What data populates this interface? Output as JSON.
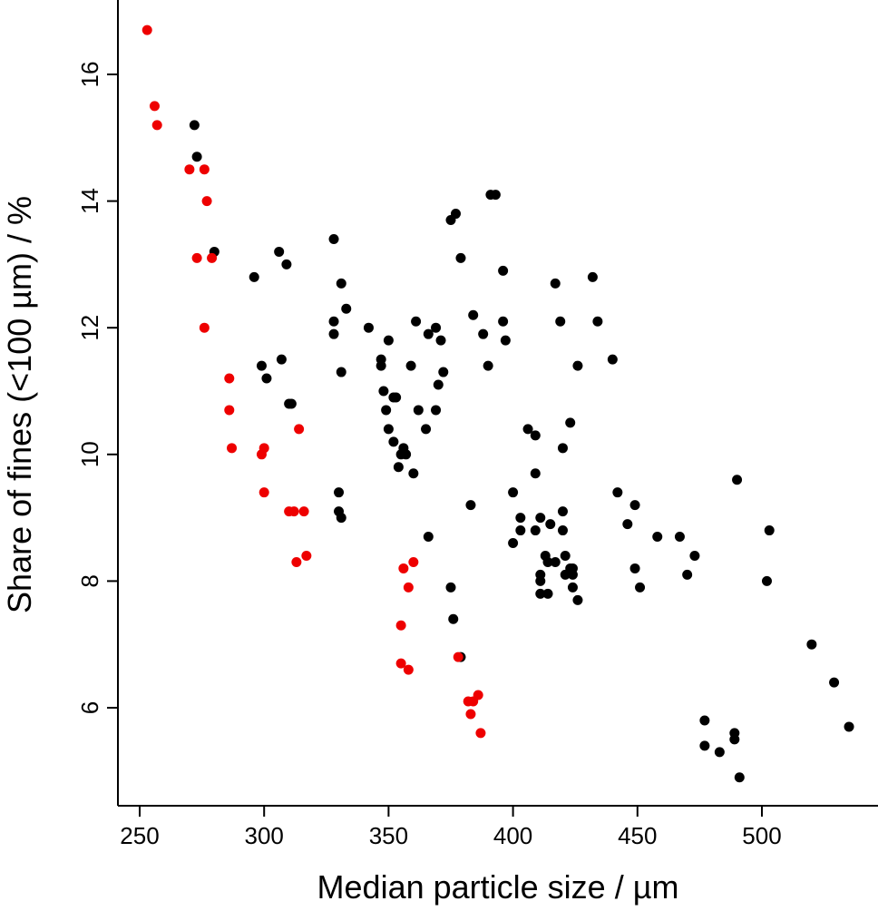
{
  "chart_data": {
    "type": "scatter",
    "title": "",
    "xlabel": "Median particle size / µm",
    "ylabel": "Share of fines (<100 µm) / %",
    "xlim": [
      245,
      545
    ],
    "ylim": [
      4.6,
      17.0
    ],
    "xticks": [
      250,
      300,
      350,
      400,
      450,
      500
    ],
    "yticks": [
      6,
      8,
      10,
      12,
      14,
      16
    ],
    "grid": false,
    "legend": "none",
    "series": [
      {
        "color": "#000000",
        "points": [
          [
            272,
            15.2
          ],
          [
            273,
            14.7
          ],
          [
            280,
            13.2
          ],
          [
            296,
            12.8
          ],
          [
            306,
            13.2
          ],
          [
            309,
            13.0
          ],
          [
            299,
            11.4
          ],
          [
            301,
            11.2
          ],
          [
            307,
            11.5
          ],
          [
            310,
            10.8
          ],
          [
            311,
            10.8
          ],
          [
            328,
            13.4
          ],
          [
            331,
            12.7
          ],
          [
            333,
            12.3
          ],
          [
            328,
            12.1
          ],
          [
            328,
            11.9
          ],
          [
            331,
            11.3
          ],
          [
            330,
            9.4
          ],
          [
            330,
            9.1
          ],
          [
            331,
            9.0
          ],
          [
            342,
            12.0
          ],
          [
            347,
            11.4
          ],
          [
            347,
            11.5
          ],
          [
            350,
            11.8
          ],
          [
            348,
            11.0
          ],
          [
            349,
            10.7
          ],
          [
            350,
            10.4
          ],
          [
            352,
            10.2
          ],
          [
            353,
            10.9
          ],
          [
            352,
            10.9
          ],
          [
            355,
            10.0
          ],
          [
            357,
            10.0
          ],
          [
            354,
            9.8
          ],
          [
            356,
            10.1
          ],
          [
            359,
            11.4
          ],
          [
            361,
            12.1
          ],
          [
            362,
            10.7
          ],
          [
            360,
            9.7
          ],
          [
            365,
            10.4
          ],
          [
            366,
            11.9
          ],
          [
            369,
            12.0
          ],
          [
            370,
            11.1
          ],
          [
            371,
            11.8
          ],
          [
            369,
            10.7
          ],
          [
            372,
            11.3
          ],
          [
            366,
            8.7
          ],
          [
            375,
            13.7
          ],
          [
            377,
            13.8
          ],
          [
            379,
            13.1
          ],
          [
            375,
            7.9
          ],
          [
            376,
            7.4
          ],
          [
            379,
            6.8
          ],
          [
            384,
            12.2
          ],
          [
            388,
            11.9
          ],
          [
            390,
            11.4
          ],
          [
            391,
            14.1
          ],
          [
            393,
            14.1
          ],
          [
            396,
            12.9
          ],
          [
            396,
            12.1
          ],
          [
            397,
            11.8
          ],
          [
            383,
            9.2
          ],
          [
            400,
            9.4
          ],
          [
            400,
            8.6
          ],
          [
            403,
            9.0
          ],
          [
            403,
            8.8
          ],
          [
            406,
            10.4
          ],
          [
            409,
            10.3
          ],
          [
            409,
            9.7
          ],
          [
            409,
            8.8
          ],
          [
            411,
            9.0
          ],
          [
            411,
            8.1
          ],
          [
            411,
            8.0
          ],
          [
            411,
            7.8
          ],
          [
            413,
            8.4
          ],
          [
            414,
            8.3
          ],
          [
            414,
            7.8
          ],
          [
            415,
            8.9
          ],
          [
            417,
            12.7
          ],
          [
            417,
            8.3
          ],
          [
            419,
            12.1
          ],
          [
            420,
            10.1
          ],
          [
            420,
            9.1
          ],
          [
            420,
            8.8
          ],
          [
            421,
            8.4
          ],
          [
            421,
            8.1
          ],
          [
            423,
            10.5
          ],
          [
            423,
            8.2
          ],
          [
            424,
            8.1
          ],
          [
            424,
            8.2
          ],
          [
            424,
            7.9
          ],
          [
            426,
            11.4
          ],
          [
            426,
            7.7
          ],
          [
            432,
            12.8
          ],
          [
            434,
            12.1
          ],
          [
            440,
            11.5
          ],
          [
            442,
            9.4
          ],
          [
            446,
            8.9
          ],
          [
            449,
            9.2
          ],
          [
            449,
            8.2
          ],
          [
            451,
            7.9
          ],
          [
            458,
            8.7
          ],
          [
            467,
            8.7
          ],
          [
            470,
            8.1
          ],
          [
            473,
            8.4
          ],
          [
            477,
            5.8
          ],
          [
            477,
            5.4
          ],
          [
            483,
            5.3
          ],
          [
            489,
            5.6
          ],
          [
            489,
            5.5
          ],
          [
            490,
            9.6
          ],
          [
            491,
            4.9
          ],
          [
            502,
            8.0
          ],
          [
            503,
            8.8
          ],
          [
            520,
            7.0
          ],
          [
            529,
            6.4
          ],
          [
            535,
            5.7
          ]
        ]
      },
      {
        "color": "#ee0000",
        "points": [
          [
            253,
            16.7
          ],
          [
            256,
            15.5
          ],
          [
            257,
            15.2
          ],
          [
            270,
            14.5
          ],
          [
            276,
            14.5
          ],
          [
            277,
            14.0
          ],
          [
            273,
            13.1
          ],
          [
            279,
            13.1
          ],
          [
            276,
            12.0
          ],
          [
            286,
            11.2
          ],
          [
            286,
            10.7
          ],
          [
            287,
            10.1
          ],
          [
            300,
            10.1
          ],
          [
            299,
            10.0
          ],
          [
            300,
            9.4
          ],
          [
            310,
            9.1
          ],
          [
            312,
            9.1
          ],
          [
            316,
            9.1
          ],
          [
            314,
            10.4
          ],
          [
            313,
            8.3
          ],
          [
            317,
            8.4
          ],
          [
            356,
            8.2
          ],
          [
            360,
            8.3
          ],
          [
            358,
            7.9
          ],
          [
            355,
            7.3
          ],
          [
            355,
            6.7
          ],
          [
            358,
            6.6
          ],
          [
            378,
            6.8
          ],
          [
            382,
            6.1
          ],
          [
            384,
            6.1
          ],
          [
            386,
            6.2
          ],
          [
            383,
            5.9
          ],
          [
            387,
            5.6
          ]
        ]
      }
    ]
  }
}
